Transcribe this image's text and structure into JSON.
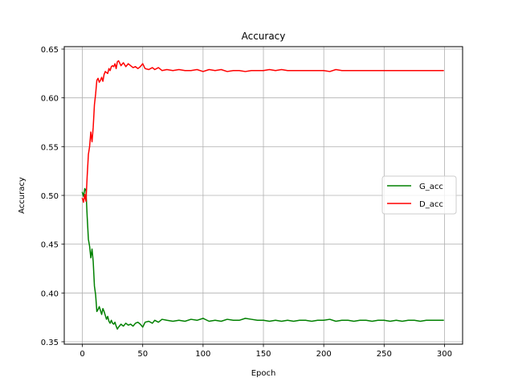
{
  "chart_data": {
    "type": "line",
    "title": "Accuracy",
    "xlabel": "Epoch",
    "ylabel": "Accuracy",
    "xlim": [
      -15,
      315
    ],
    "ylim": [
      0.3475,
      0.6525
    ],
    "xticks": [
      0,
      50,
      100,
      150,
      200,
      250,
      300
    ],
    "yticks": [
      0.35,
      0.4,
      0.45,
      0.5,
      0.55,
      0.6,
      0.65
    ],
    "ytick_labels": [
      "0.35",
      "0.40",
      "0.45",
      "0.50",
      "0.55",
      "0.60",
      "0.65"
    ],
    "grid": true,
    "legend_position": "center-right",
    "series": [
      {
        "name": "G_acc",
        "color": "#008000",
        "points": [
          [
            0,
            0.503
          ],
          [
            1,
            0.499
          ],
          [
            2,
            0.507
          ],
          [
            3,
            0.505
          ],
          [
            4,
            0.478
          ],
          [
            5,
            0.455
          ],
          [
            6,
            0.448
          ],
          [
            7,
            0.436
          ],
          [
            8,
            0.445
          ],
          [
            9,
            0.432
          ],
          [
            10,
            0.407
          ],
          [
            11,
            0.398
          ],
          [
            12,
            0.381
          ],
          [
            13,
            0.383
          ],
          [
            14,
            0.386
          ],
          [
            15,
            0.382
          ],
          [
            16,
            0.378
          ],
          [
            17,
            0.384
          ],
          [
            18,
            0.381
          ],
          [
            19,
            0.377
          ],
          [
            20,
            0.373
          ],
          [
            21,
            0.376
          ],
          [
            22,
            0.371
          ],
          [
            23,
            0.369
          ],
          [
            24,
            0.372
          ],
          [
            25,
            0.369
          ],
          [
            26,
            0.368
          ],
          [
            27,
            0.37
          ],
          [
            28,
            0.366
          ],
          [
            29,
            0.363
          ],
          [
            30,
            0.365
          ],
          [
            32,
            0.368
          ],
          [
            34,
            0.366
          ],
          [
            36,
            0.369
          ],
          [
            38,
            0.367
          ],
          [
            40,
            0.368
          ],
          [
            42,
            0.366
          ],
          [
            44,
            0.369
          ],
          [
            46,
            0.37
          ],
          [
            48,
            0.368
          ],
          [
            50,
            0.365
          ],
          [
            52,
            0.37
          ],
          [
            55,
            0.371
          ],
          [
            58,
            0.369
          ],
          [
            60,
            0.372
          ],
          [
            63,
            0.37
          ],
          [
            66,
            0.373
          ],
          [
            70,
            0.372
          ],
          [
            75,
            0.371
          ],
          [
            80,
            0.372
          ],
          [
            85,
            0.371
          ],
          [
            90,
            0.373
          ],
          [
            95,
            0.372
          ],
          [
            100,
            0.374
          ],
          [
            105,
            0.371
          ],
          [
            110,
            0.372
          ],
          [
            115,
            0.371
          ],
          [
            120,
            0.373
          ],
          [
            125,
            0.372
          ],
          [
            130,
            0.372
          ],
          [
            135,
            0.374
          ],
          [
            140,
            0.373
          ],
          [
            145,
            0.372
          ],
          [
            150,
            0.372
          ],
          [
            155,
            0.371
          ],
          [
            160,
            0.372
          ],
          [
            165,
            0.371
          ],
          [
            170,
            0.372
          ],
          [
            175,
            0.371
          ],
          [
            180,
            0.372
          ],
          [
            185,
            0.372
          ],
          [
            190,
            0.371
          ],
          [
            195,
            0.372
          ],
          [
            200,
            0.372
          ],
          [
            205,
            0.373
          ],
          [
            210,
            0.371
          ],
          [
            215,
            0.372
          ],
          [
            220,
            0.372
          ],
          [
            225,
            0.371
          ],
          [
            230,
            0.372
          ],
          [
            235,
            0.372
          ],
          [
            240,
            0.371
          ],
          [
            245,
            0.372
          ],
          [
            250,
            0.372
          ],
          [
            255,
            0.371
          ],
          [
            260,
            0.372
          ],
          [
            265,
            0.371
          ],
          [
            270,
            0.372
          ],
          [
            275,
            0.372
          ],
          [
            280,
            0.371
          ],
          [
            285,
            0.372
          ],
          [
            290,
            0.372
          ],
          [
            295,
            0.372
          ],
          [
            299,
            0.372
          ]
        ]
      },
      {
        "name": "D_acc",
        "color": "#ff0000",
        "points": [
          [
            0,
            0.497
          ],
          [
            1,
            0.493
          ],
          [
            2,
            0.501
          ],
          [
            3,
            0.494
          ],
          [
            4,
            0.52
          ],
          [
            5,
            0.542
          ],
          [
            6,
            0.55
          ],
          [
            7,
            0.565
          ],
          [
            8,
            0.555
          ],
          [
            9,
            0.57
          ],
          [
            10,
            0.593
          ],
          [
            11,
            0.604
          ],
          [
            12,
            0.618
          ],
          [
            13,
            0.62
          ],
          [
            14,
            0.616
          ],
          [
            15,
            0.618
          ],
          [
            16,
            0.621
          ],
          [
            17,
            0.617
          ],
          [
            18,
            0.624
          ],
          [
            19,
            0.627
          ],
          [
            20,
            0.626
          ],
          [
            21,
            0.625
          ],
          [
            22,
            0.63
          ],
          [
            23,
            0.628
          ],
          [
            24,
            0.632
          ],
          [
            25,
            0.633
          ],
          [
            26,
            0.632
          ],
          [
            27,
            0.635
          ],
          [
            28,
            0.63
          ],
          [
            29,
            0.637
          ],
          [
            30,
            0.638
          ],
          [
            32,
            0.633
          ],
          [
            34,
            0.636
          ],
          [
            36,
            0.632
          ],
          [
            38,
            0.635
          ],
          [
            40,
            0.633
          ],
          [
            42,
            0.631
          ],
          [
            44,
            0.632
          ],
          [
            46,
            0.63
          ],
          [
            48,
            0.632
          ],
          [
            50,
            0.635
          ],
          [
            52,
            0.63
          ],
          [
            55,
            0.629
          ],
          [
            58,
            0.631
          ],
          [
            60,
            0.629
          ],
          [
            63,
            0.631
          ],
          [
            66,
            0.628
          ],
          [
            70,
            0.629
          ],
          [
            75,
            0.628
          ],
          [
            80,
            0.629
          ],
          [
            85,
            0.628
          ],
          [
            90,
            0.628
          ],
          [
            95,
            0.629
          ],
          [
            100,
            0.627
          ],
          [
            105,
            0.629
          ],
          [
            110,
            0.628
          ],
          [
            115,
            0.629
          ],
          [
            120,
            0.627
          ],
          [
            125,
            0.628
          ],
          [
            130,
            0.628
          ],
          [
            135,
            0.627
          ],
          [
            140,
            0.628
          ],
          [
            145,
            0.628
          ],
          [
            150,
            0.628
          ],
          [
            155,
            0.629
          ],
          [
            160,
            0.628
          ],
          [
            165,
            0.629
          ],
          [
            170,
            0.628
          ],
          [
            175,
            0.628
          ],
          [
            180,
            0.628
          ],
          [
            185,
            0.628
          ],
          [
            190,
            0.628
          ],
          [
            195,
            0.628
          ],
          [
            200,
            0.628
          ],
          [
            205,
            0.627
          ],
          [
            210,
            0.629
          ],
          [
            215,
            0.628
          ],
          [
            220,
            0.628
          ],
          [
            225,
            0.628
          ],
          [
            230,
            0.628
          ],
          [
            235,
            0.628
          ],
          [
            240,
            0.628
          ],
          [
            245,
            0.628
          ],
          [
            250,
            0.628
          ],
          [
            255,
            0.628
          ],
          [
            260,
            0.628
          ],
          [
            265,
            0.628
          ],
          [
            270,
            0.628
          ],
          [
            275,
            0.628
          ],
          [
            280,
            0.628
          ],
          [
            285,
            0.628
          ],
          [
            290,
            0.628
          ],
          [
            295,
            0.628
          ],
          [
            299,
            0.628
          ]
        ]
      }
    ]
  }
}
